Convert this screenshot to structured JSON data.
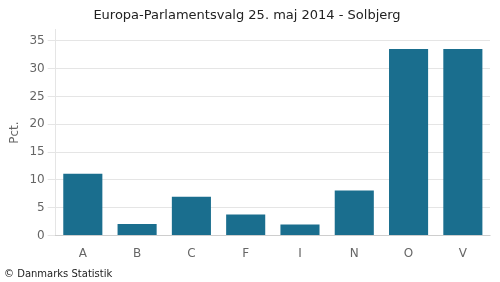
{
  "chart_data": {
    "type": "bar",
    "title": "Europa-Parlamentsvalg 25. maj 2014 - Solbjerg",
    "categories": [
      "A",
      "B",
      "C",
      "F",
      "I",
      "N",
      "O",
      "V"
    ],
    "values": [
      11.1,
      2.1,
      7.0,
      3.8,
      2.0,
      8.1,
      33.5,
      33.5
    ],
    "color": "#1a6e8e",
    "ylabel": "Pct.",
    "annotations": [
      "© Danmarks Statistik"
    ],
    "ylim": [
      0,
      37
    ],
    "yticks": [
      0,
      5,
      10,
      15,
      20,
      25,
      30,
      35
    ],
    "grid": true
  }
}
